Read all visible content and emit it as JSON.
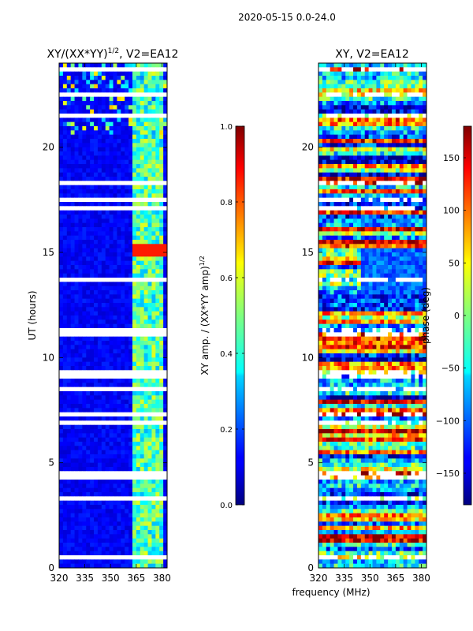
{
  "figure": {
    "suptitle": "2020-05-15 0.0-24.0",
    "xlabel": "frequency (MHz)"
  },
  "chart_data": [
    {
      "type": "heatmap",
      "title": "XY/(XX*YY)",
      "title_exponent": "1/2",
      "title_suffix": ", V2=EA12",
      "xlabel": "",
      "ylabel": "UT (hours)",
      "xlim": [
        320,
        383
      ],
      "ylim": [
        0,
        24
      ],
      "xticks": [
        320,
        335,
        350,
        365,
        380
      ],
      "yticks": [
        0,
        5,
        10,
        15,
        20
      ],
      "colorbar": {
        "label": "XY amp. / (XX*YY amp)",
        "label_exponent": "1/2",
        "range": [
          0.0,
          1.0
        ],
        "ticks": [
          "0.0",
          "0.2",
          "0.4",
          "0.6",
          "0.8",
          "1.0"
        ]
      },
      "colormap": "jet",
      "description_values": {
        "background_level": 0.1,
        "channel_band_mhz": [
          362,
          380
        ],
        "channel_band_level": 0.4,
        "rfi_hot_hours": [
          15.0,
          15.2
        ]
      }
    },
    {
      "type": "heatmap",
      "title": "XY, V2=EA12",
      "xlabel": "",
      "ylabel": "",
      "xlim": [
        320,
        383
      ],
      "ylim": [
        0,
        24
      ],
      "xticks": [
        320,
        335,
        350,
        365,
        380
      ],
      "yticks": [
        0,
        5,
        10,
        15,
        20
      ],
      "colorbar": {
        "label": "phase (deg)",
        "range": [
          -180,
          180
        ],
        "ticks": [
          "150",
          "100",
          "50",
          "0",
          "−50",
          "−100",
          "−150"
        ],
        "tick_values": [
          150,
          100,
          50,
          0,
          -50,
          -100,
          -150
        ]
      },
      "colormap": "jet"
    }
  ]
}
